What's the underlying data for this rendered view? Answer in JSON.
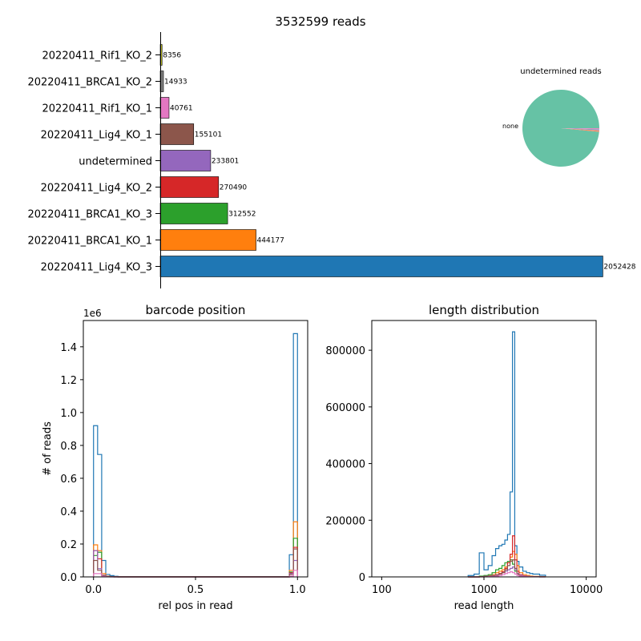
{
  "chart_data": [
    {
      "type": "bar",
      "orientation": "horizontal",
      "title": "3532599 reads",
      "categories": [
        "20220411_Lig4_KO_3",
        "20220411_BRCA1_KO_1",
        "20220411_BRCA1_KO_3",
        "20220411_Lig4_KO_2",
        "undetermined",
        "20220411_Lig4_KO_1",
        "20220411_Rif1_KO_1",
        "20220411_BRCA1_KO_2",
        "20220411_Rif1_KO_2"
      ],
      "values": [
        2052428,
        444177,
        312552,
        270490,
        233801,
        155101,
        40761,
        14933,
        8356
      ],
      "data_labels": [
        "2052428",
        "444177",
        "312552",
        "270490",
        "233801",
        "155101",
        "40761",
        "14933",
        "8356"
      ],
      "colors": [
        "#1f77b4",
        "#ff7f0e",
        "#2ca02c",
        "#d62728",
        "#9467bd",
        "#8c564b",
        "#e377c2",
        "#7f7f7f",
        "#bcbd22"
      ],
      "xlim": [
        0,
        2155000
      ]
    },
    {
      "type": "pie",
      "title": "undetermined reads",
      "labels": [
        "none",
        "",
        "",
        ""
      ],
      "values": [
        0.985,
        0.006,
        0.005,
        0.004
      ],
      "colors": [
        "#66c2a5",
        "#fc8d62",
        "#8da0cb",
        "#e78ac3"
      ]
    },
    {
      "type": "line",
      "style": "step-histogram",
      "title": "barcode position",
      "xlabel": "rel pos in read",
      "ylabel": "# of reads",
      "y_offset_label": "1e6",
      "xlim": [
        -0.05,
        1.05
      ],
      "ylim": [
        0,
        1.56
      ],
      "xticks": [
        "0.0",
        "0.5",
        "1.0"
      ],
      "yticks": [
        "0.0",
        "0.2",
        "0.4",
        "0.6",
        "0.8",
        "1.0",
        "1.2",
        "1.4"
      ],
      "bin_edges": [
        0.0,
        0.02,
        0.04,
        0.06,
        0.08,
        0.1,
        0.12,
        0.14,
        0.96,
        0.98,
        1.0
      ],
      "series": [
        {
          "color": "#1f77b4",
          "values": [
            0.92,
            0.745,
            0.1,
            0.015,
            0.008,
            0.004,
            0.002,
            0.002,
            0.135,
            1.48
          ]
        },
        {
          "color": "#ff7f0e",
          "values": [
            0.195,
            0.16,
            0.02,
            0.004,
            0.002,
            0.001,
            0.001,
            0.001,
            0.04,
            0.335
          ]
        },
        {
          "color": "#2ca02c",
          "values": [
            0.13,
            0.15,
            0.01,
            0.003,
            0.001,
            0.001,
            0.0,
            0.0,
            0.03,
            0.235
          ]
        },
        {
          "color": "#d62728",
          "values": [
            0.16,
            0.11,
            0.01,
            0.003,
            0.001,
            0.001,
            0.0,
            0.0,
            0.025,
            0.18
          ]
        },
        {
          "color": "#9467bd",
          "values": [
            0.16,
            0.05,
            0.01,
            0.002,
            0.001,
            0.0,
            0.0,
            0.0,
            0.02,
            0.1
          ]
        },
        {
          "color": "#8c564b",
          "values": [
            0.1,
            0.04,
            0.008,
            0.002,
            0.001,
            0.0,
            0.0,
            0.0,
            0.015,
            0.17
          ]
        },
        {
          "color": "#e377c2",
          "values": [
            0.02,
            0.02,
            0.004,
            0.001,
            0.0,
            0.0,
            0.0,
            0.0,
            0.005,
            0.04
          ]
        }
      ]
    },
    {
      "type": "line",
      "style": "step-histogram",
      "title": "length distribution",
      "xlabel": "read length",
      "x_scale": "log",
      "xlim": [
        80,
        12500
      ],
      "ylim": [
        0,
        905000
      ],
      "xticks": [
        "100",
        "1000",
        "10000"
      ],
      "yticks": [
        "0",
        "200000",
        "400000",
        "600000",
        "800000"
      ],
      "bin_edges": [
        700,
        800,
        900,
        1000,
        1100,
        1200,
        1300,
        1400,
        1500,
        1600,
        1700,
        1800,
        1900,
        2000,
        2100,
        2200,
        2400,
        2600,
        2800,
        3000,
        3500,
        4000
      ],
      "series": [
        {
          "color": "#1f77b4",
          "values": [
            5000,
            10000,
            85000,
            25000,
            40000,
            75000,
            100000,
            110000,
            115000,
            130000,
            150000,
            300000,
            865000,
            110000,
            55000,
            35000,
            20000,
            15000,
            12000,
            10000,
            6000
          ]
        },
        {
          "color": "#ff7f0e",
          "values": [
            0,
            0,
            2000,
            3000,
            5000,
            8000,
            15000,
            20000,
            25000,
            35000,
            50000,
            70000,
            90000,
            80000,
            40000,
            15000,
            8000,
            5000,
            3000,
            2000,
            1000
          ]
        },
        {
          "color": "#2ca02c",
          "values": [
            0,
            0,
            3000,
            5000,
            8000,
            15000,
            25000,
            30000,
            40000,
            50000,
            55000,
            60000,
            45000,
            20000,
            10000,
            5000,
            3000,
            2000,
            1000,
            500,
            200
          ]
        },
        {
          "color": "#d62728",
          "values": [
            0,
            0,
            1000,
            2000,
            3000,
            5000,
            8000,
            12000,
            18000,
            30000,
            50000,
            80000,
            145000,
            60000,
            20000,
            8000,
            4000,
            2000,
            1000,
            500,
            200
          ]
        },
        {
          "color": "#9467bd",
          "values": [
            0,
            0,
            1000,
            2000,
            3000,
            5000,
            7000,
            10000,
            15000,
            20000,
            25000,
            30000,
            35000,
            25000,
            12000,
            6000,
            3000,
            2000,
            1000,
            500,
            200
          ]
        },
        {
          "color": "#8c564b",
          "values": [
            0,
            0,
            1000,
            1500,
            2000,
            4000,
            6000,
            10000,
            15000,
            25000,
            40000,
            55000,
            60000,
            30000,
            10000,
            4000,
            2000,
            1000,
            500,
            200,
            100
          ]
        },
        {
          "color": "#e377c2",
          "values": [
            0,
            0,
            0,
            500,
            1000,
            2000,
            3000,
            5000,
            8000,
            12000,
            15000,
            18000,
            15000,
            10000,
            5000,
            3000,
            2000,
            1000,
            500,
            200,
            100
          ]
        }
      ]
    }
  ]
}
